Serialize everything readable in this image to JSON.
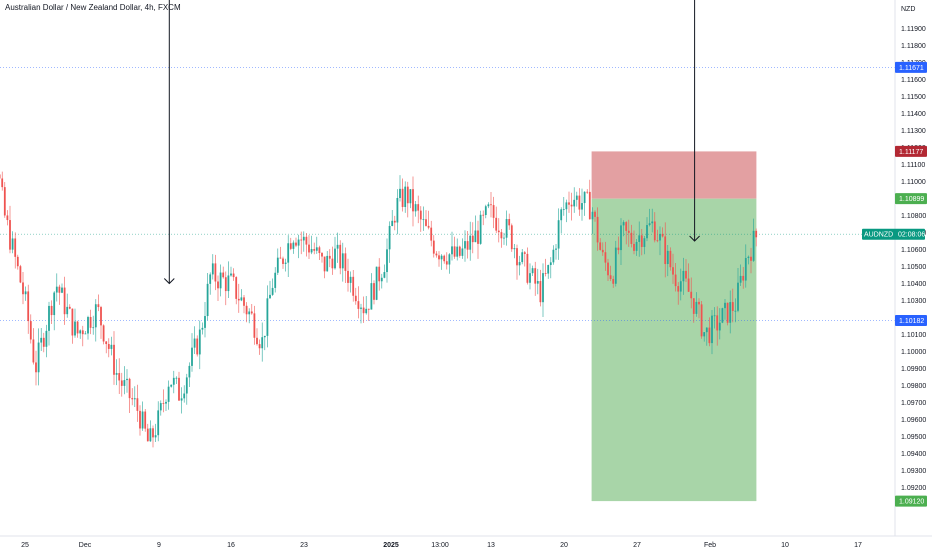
{
  "chart_data": {
    "type": "candlestick",
    "title": "Australian Dollar / New Zealand Dollar, 4h, FXCM",
    "currency_label": "NZD",
    "y_range": [
      1.0908,
      1.1205
    ],
    "y_ticks": [
      "1.11900",
      "1.11800",
      "1.11700",
      "1.11600",
      "1.11500",
      "1.11400",
      "1.11300",
      "1.11200",
      "1.11100",
      "1.11000",
      "1.10800",
      "1.10700",
      "1.10600",
      "1.10500",
      "1.10400",
      "1.10300",
      "1.10100",
      "1.10000",
      "1.09900",
      "1.09800",
      "1.09700",
      "1.09600",
      "1.09500",
      "1.09400",
      "1.09300",
      "1.09200"
    ],
    "x_ticks": [
      {
        "label": "25",
        "bold": false
      },
      {
        "label": "Dec",
        "bold": false
      },
      {
        "label": "9",
        "bold": false
      },
      {
        "label": "16",
        "bold": false
      },
      {
        "label": "23",
        "bold": false
      },
      {
        "label": "2025",
        "bold": true
      },
      {
        "label": "13:00",
        "bold": false
      },
      {
        "label": "13",
        "bold": false
      },
      {
        "label": "20",
        "bold": false
      },
      {
        "label": "27",
        "bold": false
      },
      {
        "label": "Feb",
        "bold": false
      },
      {
        "label": "10",
        "bold": false
      },
      {
        "label": "17",
        "bold": false
      }
    ],
    "price_badges": [
      {
        "name": "upper-level",
        "label": "1.11671",
        "value": 1.11671,
        "color": "#2962ff"
      },
      {
        "name": "stop-loss",
        "label": "1.11177",
        "value": 1.11177,
        "color": "#b22833"
      },
      {
        "name": "entry",
        "label": "1.10899",
        "value": 1.10899,
        "color": "#4caf50"
      },
      {
        "name": "current-price",
        "label": "AUDNZD",
        "countdown": "02:08:06",
        "value": 1.1069,
        "color": "#089981"
      },
      {
        "name": "lower-level",
        "label": "1.10182",
        "value": 1.10182,
        "color": "#2962ff"
      },
      {
        "name": "take-profit",
        "label": "1.09120",
        "value": 1.0912,
        "color": "#4caf50"
      }
    ],
    "position": {
      "type": "short",
      "entry": 1.10899,
      "stop": 1.11177,
      "target": 1.0912,
      "start_date": "2025-01-20",
      "end_date": "2025-02-05"
    },
    "arrows": [
      {
        "date": "2024-12-10",
        "from": 1.1209,
        "to": 1.104
      },
      {
        "date": "2025-01-30",
        "from": 1.1209,
        "to": 1.1065
      }
    ],
    "horizontal_lines": [
      1.11671,
      1.10182,
      1.1069
    ],
    "candle_path": [
      {
        "date": "2024-11-21",
        "value": 1.115
      },
      {
        "date": "2024-11-22",
        "value": 1.116
      },
      {
        "date": "2024-11-23",
        "value": 1.112
      },
      {
        "date": "2024-11-24",
        "value": 1.108
      },
      {
        "date": "2024-11-26",
        "value": 1.103
      },
      {
        "date": "2024-11-27",
        "value": 1.099
      },
      {
        "date": "2024-11-29",
        "value": 1.104
      },
      {
        "date": "2024-12-01",
        "value": 1.101
      },
      {
        "date": "2024-12-03",
        "value": 1.1025
      },
      {
        "date": "2024-12-05",
        "value": 1.0985
      },
      {
        "date": "2024-12-07",
        "value": 1.0965
      },
      {
        "date": "2024-12-08",
        "value": 1.0945
      },
      {
        "date": "2024-12-09",
        "value": 1.096
      },
      {
        "date": "2024-12-10",
        "value": 1.0985
      },
      {
        "date": "2024-12-11",
        "value": 1.0975
      },
      {
        "date": "2024-12-13",
        "value": 1.101
      },
      {
        "date": "2024-12-14",
        "value": 1.1045
      },
      {
        "date": "2024-12-16",
        "value": 1.104
      },
      {
        "date": "2024-12-18",
        "value": 1.102
      },
      {
        "date": "2024-12-19",
        "value": 1.1005
      },
      {
        "date": "2024-12-20",
        "value": 1.104
      },
      {
        "date": "2024-12-22",
        "value": 1.107
      },
      {
        "date": "2024-12-24",
        "value": 1.106
      },
      {
        "date": "2024-12-25",
        "value": 1.105
      },
      {
        "date": "2024-12-26",
        "value": 1.1058
      },
      {
        "date": "2024-12-27",
        "value": 1.105
      },
      {
        "date": "2024-12-29",
        "value": 1.1025
      },
      {
        "date": "2024-12-31",
        "value": 1.1055
      },
      {
        "date": "2025-01-01",
        "value": 1.1085
      },
      {
        "date": "2025-01-02",
        "value": 1.1093
      },
      {
        "date": "2025-01-04",
        "value": 1.107
      },
      {
        "date": "2025-01-05",
        "value": 1.106
      },
      {
        "date": "2025-01-07",
        "value": 1.1055
      },
      {
        "date": "2025-01-09",
        "value": 1.107
      },
      {
        "date": "2025-01-10",
        "value": 1.1082
      },
      {
        "date": "2025-01-12",
        "value": 1.107
      },
      {
        "date": "2025-01-13",
        "value": 1.1055
      },
      {
        "date": "2025-01-15",
        "value": 1.1035
      },
      {
        "date": "2025-01-16",
        "value": 1.105
      },
      {
        "date": "2025-01-17",
        "value": 1.108
      },
      {
        "date": "2025-01-18",
        "value": 1.1092
      },
      {
        "date": "2025-01-19",
        "value": 1.1088
      },
      {
        "date": "2025-01-20",
        "value": 1.1085
      },
      {
        "date": "2025-01-21",
        "value": 1.1055
      },
      {
        "date": "2025-01-22",
        "value": 1.1045
      },
      {
        "date": "2025-01-23",
        "value": 1.107
      },
      {
        "date": "2025-01-24",
        "value": 1.1065
      },
      {
        "date": "2025-01-25",
        "value": 1.107
      },
      {
        "date": "2025-01-26",
        "value": 1.1075
      },
      {
        "date": "2025-01-27",
        "value": 1.106
      },
      {
        "date": "2025-01-28",
        "value": 1.1045
      },
      {
        "date": "2025-01-29",
        "value": 1.104
      },
      {
        "date": "2025-01-30",
        "value": 1.1028
      },
      {
        "date": "2025-01-31",
        "value": 1.101
      },
      {
        "date": "2025-02-01",
        "value": 1.1015
      },
      {
        "date": "2025-02-02",
        "value": 1.1022
      },
      {
        "date": "2025-02-03",
        "value": 1.1028
      },
      {
        "date": "2025-02-04",
        "value": 1.1055
      },
      {
        "date": "2025-02-05",
        "value": 1.1068
      }
    ],
    "up_color": "#26a69a",
    "down_color": "#ef5350",
    "grid": false
  }
}
